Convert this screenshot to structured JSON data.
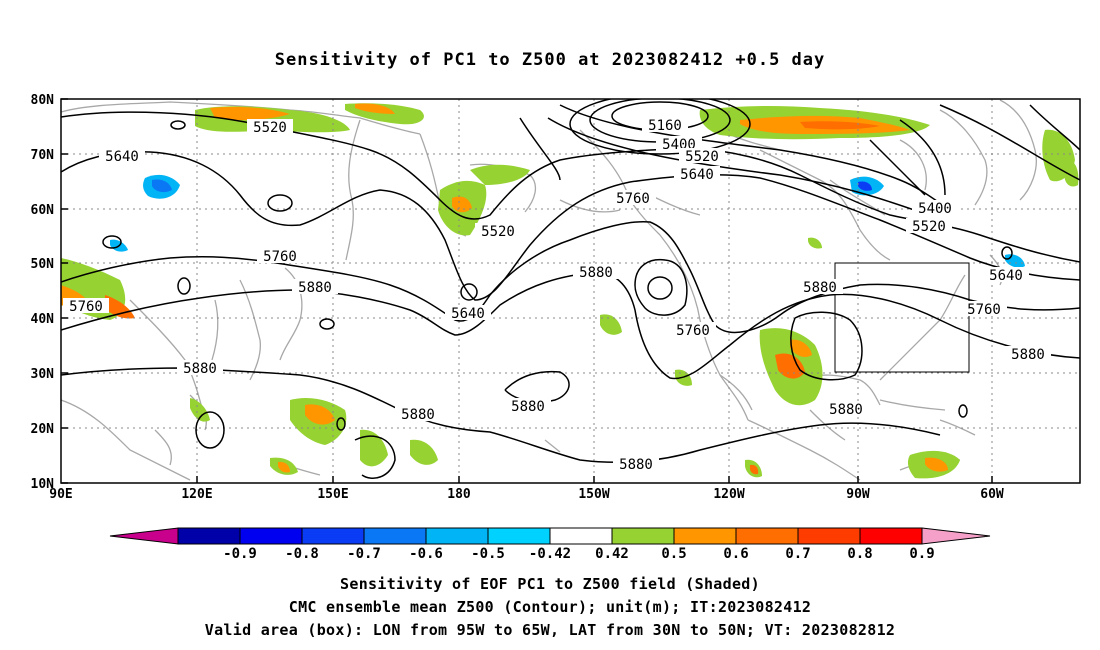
{
  "title": "Sensitivity of PC1 to Z500 at 2023082412 +0.5 day",
  "map": {
    "lat_labels": [
      "80N",
      "70N",
      "60N",
      "50N",
      "40N",
      "30N",
      "20N",
      "10N"
    ],
    "lon_labels": [
      "90E",
      "120E",
      "150E",
      "180",
      "150W",
      "120W",
      "90W",
      "60W"
    ],
    "contour_labels": [
      "5520",
      "5640",
      "5760",
      "5880",
      "5640",
      "5760",
      "5880",
      "5520",
      "5160",
      "5400",
      "5520",
      "5640",
      "5760",
      "5880",
      "5760",
      "5880",
      "5880",
      "5880",
      "5880",
      "5400",
      "5520",
      "5640",
      "5760",
      "5880",
      "5880"
    ],
    "valid_box": {
      "lon_west": -95,
      "lon_east": -65,
      "lat_south": 30,
      "lat_north": 50
    }
  },
  "colorbar": {
    "labels": [
      "-0.9",
      "-0.8",
      "-0.7",
      "-0.6",
      "-0.5",
      "-0.42",
      "0.42",
      "0.5",
      "0.6",
      "0.7",
      "0.8",
      "0.9"
    ],
    "colors": [
      "#0000a8",
      "#0000f0",
      "#0a3cf5",
      "#0a78f5",
      "#00b4f5",
      "#00d2ff",
      "#ffffff",
      "#96d232",
      "#ff9600",
      "#ff6e00",
      "#ff3c00",
      "#ff0000"
    ],
    "left_arrow_color": "#c8008c",
    "right_arrow_color": "#f5a0c8"
  },
  "captions": [
    "Sensitivity of EOF PC1 to Z500 field (Shaded)",
    "CMC ensemble mean Z500 (Contour); unit(m); IT:2023082412",
    "Valid area (box): LON from 95W to 65W, LAT from 30N to 50N; VT: 2023082812"
  ]
}
